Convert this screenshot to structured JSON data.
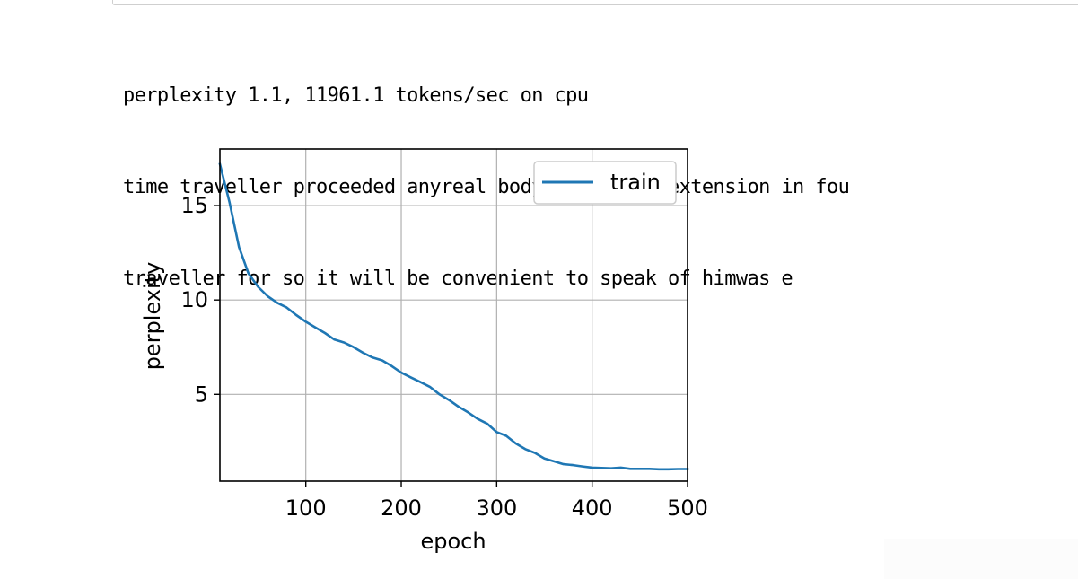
{
  "output": {
    "lines": [
      "perplexity 1.1, 11961.1 tokens/sec on cpu",
      "time traveller proceeded anyreal body must have extension in fou",
      "traveller for so it will be convenient to speak of himwas e"
    ]
  },
  "chart_data": {
    "type": "line",
    "title": "",
    "xlabel": "epoch",
    "ylabel": "perplexity",
    "xlim": [
      10,
      500
    ],
    "ylim": [
      0.4,
      18.0
    ],
    "xticks": [
      100,
      200,
      300,
      400,
      500
    ],
    "xtick_labels": [
      "100",
      "200",
      "300",
      "400",
      "500"
    ],
    "yticks": [
      5,
      10,
      15
    ],
    "ytick_labels": [
      "5",
      "10",
      "15"
    ],
    "grid": true,
    "legend_position": "top-right",
    "series": [
      {
        "name": "train",
        "color": "#1f77b4",
        "x": [
          10,
          20,
          30,
          40,
          50,
          60,
          70,
          80,
          90,
          100,
          110,
          120,
          130,
          140,
          150,
          160,
          170,
          180,
          190,
          200,
          210,
          220,
          230,
          240,
          250,
          260,
          270,
          280,
          290,
          300,
          310,
          320,
          330,
          340,
          350,
          360,
          370,
          380,
          390,
          400,
          410,
          420,
          430,
          440,
          450,
          460,
          470,
          480,
          490,
          500
        ],
        "y": [
          17.2,
          15.2,
          12.8,
          11.4,
          10.7,
          10.2,
          9.85,
          9.6,
          9.2,
          8.85,
          8.55,
          8.25,
          7.9,
          7.75,
          7.5,
          7.2,
          6.95,
          6.8,
          6.5,
          6.15,
          5.9,
          5.65,
          5.4,
          5.0,
          4.7,
          4.35,
          4.05,
          3.7,
          3.45,
          3.0,
          2.8,
          2.4,
          2.1,
          1.9,
          1.6,
          1.45,
          1.3,
          1.25,
          1.18,
          1.12,
          1.1,
          1.08,
          1.12,
          1.05,
          1.05,
          1.05,
          1.03,
          1.03,
          1.04,
          1.04
        ]
      }
    ]
  }
}
